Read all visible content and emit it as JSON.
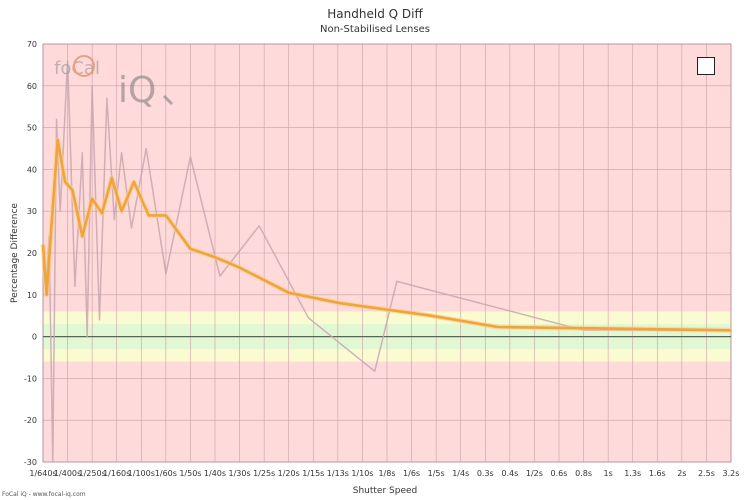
{
  "chart_data": {
    "type": "line",
    "title": "Handheld Q Diff",
    "subtitle": "Non-Stabilised Lenses",
    "xlabel": "Shutter Speed",
    "ylabel": "Percentage Difference",
    "ylim": [
      -30,
      70
    ],
    "y_ticks": [
      -30,
      -20,
      -10,
      0,
      10,
      20,
      30,
      40,
      50,
      60,
      70
    ],
    "x_ticks": [
      "1/640s",
      "1/400s",
      "1/250s",
      "1/160s",
      "1/100s",
      "1/60s",
      "1/50s",
      "1/40s",
      "1/30s",
      "1/25s",
      "1/20s",
      "1/15s",
      "1/13s",
      "1/10s",
      "1/8s",
      "1/6s",
      "1/5s",
      "1/4s",
      "0.3s",
      "0.4s",
      "1/2s",
      "0.6s",
      "0.8s",
      "1s",
      "1.3s",
      "1.6s",
      "2s",
      "2.5s",
      "3.2s"
    ],
    "grid": true,
    "bands": [
      {
        "name": "green",
        "from": -3,
        "to": 3,
        "color": "#e2f7d4"
      },
      {
        "name": "yellow",
        "from": -6,
        "to": 6,
        "color": "#fbfbd2"
      },
      {
        "name": "red",
        "from": -30,
        "to": 70,
        "color": "#fedada"
      }
    ],
    "series": [
      {
        "color": "#c8a6b0",
        "x": [
          0.1,
          0.25,
          0.4,
          0.55,
          0.7,
          1,
          1.3,
          1.6,
          1.8,
          2,
          2.3,
          2.6,
          2.9,
          3.2,
          3.6,
          4.2,
          5,
          6,
          7.2,
          8.8,
          10.8,
          13.5,
          14.4,
          22,
          28
        ],
        "values": [
          10,
          24,
          -30,
          52,
          30,
          66,
          12,
          44,
          0,
          60,
          4,
          57,
          28,
          44,
          26,
          45,
          15,
          43,
          14.5,
          26.5,
          4.5,
          -8.3,
          13.2,
          1.5,
          1.5
        ]
      },
      {
        "color": "#f0a43a",
        "x": [
          0,
          0.15,
          0.35,
          0.6,
          0.9,
          1.2,
          1.6,
          2,
          2.4,
          2.8,
          3.2,
          3.7,
          4.3,
          5,
          6,
          7,
          8,
          10,
          12.1,
          15.8,
          18.5,
          22,
          28
        ],
        "values": [
          22,
          10,
          27,
          47,
          37,
          35,
          24,
          33,
          29.5,
          38,
          30,
          37,
          29,
          29,
          21,
          19,
          16.5,
          10.5,
          8,
          5,
          2.3,
          2,
          1.5
        ]
      }
    ],
    "annotations": {
      "logo_text_1": "foCal",
      "logo_text_2": "iQ",
      "credit": "FoCal iQ - www.focal-iq.com"
    }
  },
  "legend_toggle": {
    "checked": false
  }
}
